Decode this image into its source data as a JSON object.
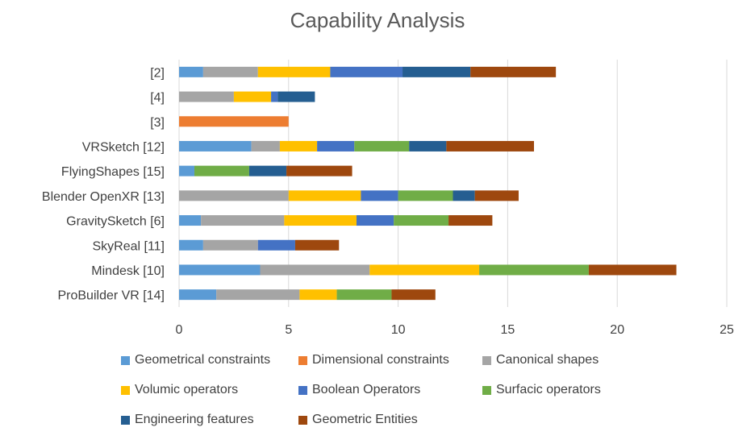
{
  "chart_data": {
    "type": "bar",
    "orientation": "horizontal",
    "stacked": true,
    "title": "Capability Analysis",
    "xlabel": "",
    "ylabel": "",
    "xlim": [
      0,
      25
    ],
    "x_ticks": [
      "0",
      "5",
      "10",
      "15",
      "20",
      "25"
    ],
    "grid": "vertical",
    "legend_position": "bottom",
    "categories": [
      "[2]",
      "[4]",
      "[3]",
      "VRSketch [12]",
      "FlyingShapes [15]",
      "Blender OpenXR [13]",
      "GravitySketch [6]",
      "SkyReal [11]",
      "Mindesk [10]",
      "ProBuilder VR [14]"
    ],
    "series": [
      {
        "name": "Geometrical constraints",
        "color": "#5b9bd5",
        "values": [
          1.1,
          0,
          0,
          3.3,
          0.7,
          0,
          1.0,
          1.1,
          3.7,
          1.7
        ]
      },
      {
        "name": "Dimensional constraints",
        "color": "#ed7d31",
        "values": [
          0,
          0,
          5.0,
          0,
          0,
          0,
          0,
          0,
          0,
          0
        ]
      },
      {
        "name": "Canonical shapes",
        "color": "#a5a5a5",
        "values": [
          2.5,
          2.5,
          0,
          1.3,
          0,
          5.0,
          3.8,
          2.5,
          5.0,
          3.8
        ]
      },
      {
        "name": "Volumic operators",
        "color": "#ffc000",
        "values": [
          3.3,
          1.7,
          0,
          1.7,
          0,
          3.3,
          3.3,
          0,
          5.0,
          1.7
        ]
      },
      {
        "name": "Boolean Operators",
        "color": "#4472c4",
        "values": [
          3.3,
          0.3,
          0,
          1.7,
          0,
          1.7,
          1.7,
          1.7,
          0,
          0
        ]
      },
      {
        "name": "Surfacic operators",
        "color": "#70ad47",
        "values": [
          0,
          0,
          0,
          2.5,
          2.5,
          2.5,
          2.5,
          0,
          5.0,
          2.5
        ]
      },
      {
        "name": "Engineering features",
        "color": "#255e91",
        "values": [
          3.1,
          1.7,
          0,
          1.7,
          1.7,
          1.0,
          0,
          0,
          0,
          0
        ]
      },
      {
        "name": "Geometric Entities",
        "color": "#9e480e",
        "values": [
          3.9,
          0,
          0,
          4.0,
          3.0,
          2.0,
          2.0,
          2.0,
          4.0,
          2.0
        ]
      }
    ]
  }
}
